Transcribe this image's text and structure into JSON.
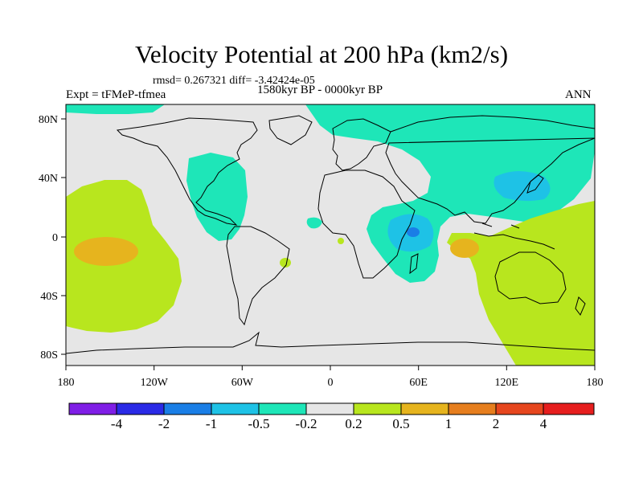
{
  "title": "Velocity Potential at 200 hPa (km2/s)",
  "stats": "rmsd= 0.267321 diff= -3.42424e-05",
  "experiment": "Expt = tFMeP-tfmea",
  "period": "1580kyr BP - 0000kyr BP",
  "season": "ANN",
  "lon_ticks": [
    "180",
    "120W",
    "60W",
    "0",
    "60E",
    "120E",
    "180"
  ],
  "lat_ticks": [
    "80N",
    "40N",
    "0",
    "40S",
    "80S"
  ],
  "colorbar": {
    "labels": [
      "-4",
      "-2",
      "-1",
      "-0.5",
      "-0.2",
      "0.2",
      "0.5",
      "1",
      "2",
      "4"
    ],
    "colors": [
      "#7f1ee6",
      "#2a2ae6",
      "#1a7ee6",
      "#1ec2e6",
      "#1ee6b8",
      "#e6e6e6",
      "#b8e61e",
      "#e6b41e",
      "#e67e1e",
      "#e6461e",
      "#e61e1e"
    ]
  },
  "colors": {
    "neutral": "#e6e6e6",
    "neg_weak": "#1ee6b8",
    "neg_mid": "#1ec2e6",
    "neg_strong": "#1a7ee6",
    "pos_weak": "#b8e61e",
    "pos_mid": "#e6b41e"
  }
}
